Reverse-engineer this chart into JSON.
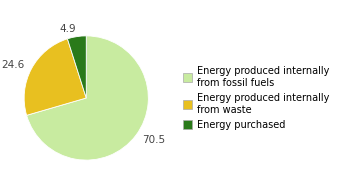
{
  "values": [
    70.5,
    24.6,
    4.9
  ],
  "labels": [
    "70.5",
    "24.6",
    "4.9"
  ],
  "colors": [
    "#c8eba0",
    "#e8c020",
    "#2a7a1a"
  ],
  "legend_labels": [
    "Energy produced internally\nfrom fossil fuels",
    "Energy produced internally\nfrom waste",
    "Energy purchased"
  ],
  "startangle": 90,
  "background_color": "#ffffff",
  "label_fontsize": 7.5,
  "legend_fontsize": 7.0,
  "legend_edge_color": "#aaaaaa"
}
